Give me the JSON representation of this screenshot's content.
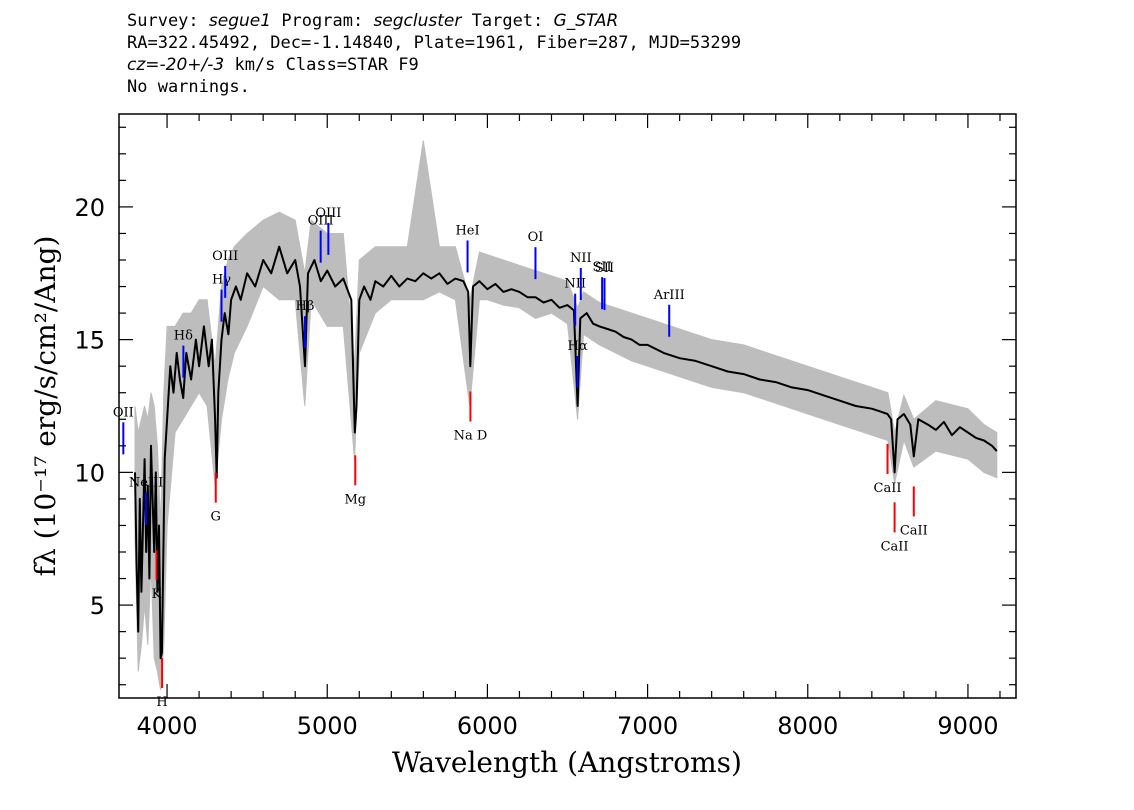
{
  "header": {
    "survey_label": "Survey:",
    "survey": "segue1",
    "program_label": "Program:",
    "program": "segcluster",
    "target_label": "Target:",
    "target": "G_STAR",
    "line2": "RA=322.45492, Dec=-1.14840, Plate=1961, Fiber=287, MJD=53299",
    "cz": "cz=",
    "cz_value": "-20+/-3",
    "cz_rest": " km/s Class=STAR F9",
    "line4": "No warnings."
  },
  "chart_data": {
    "type": "line",
    "xlabel": "Wavelength (Angstroms)",
    "ylabel": "fλ (10⁻¹⁷ erg/s/cm²/Ang)",
    "xlim": [
      3700,
      9300
    ],
    "ylim": [
      1.5,
      23.5
    ],
    "x_ticks": [
      4000,
      5000,
      6000,
      7000,
      8000,
      9000
    ],
    "y_ticks": [
      5,
      10,
      15,
      20
    ],
    "series": [
      {
        "role": "error-envelope",
        "color": "#bdbdbd",
        "x": [
          3800,
          3820,
          3840,
          3860,
          3880,
          3900,
          3920,
          3940,
          3960,
          3980,
          4000,
          4050,
          4100,
          4150,
          4200,
          4250,
          4300,
          4340,
          4380,
          4420,
          4500,
          4600,
          4700,
          4800,
          4860,
          4900,
          5000,
          5100,
          5170,
          5200,
          5300,
          5400,
          5500,
          5600,
          5700,
          5800,
          5890,
          5950,
          6000,
          6100,
          6200,
          6300,
          6400,
          6500,
          6563,
          6600,
          6700,
          6800,
          6900,
          7000,
          7200,
          7400,
          7600,
          7800,
          8000,
          8200,
          8400,
          8500,
          8542,
          8600,
          8662,
          8800,
          9000,
          9100,
          9180
        ],
        "low": [
          7.5,
          2.5,
          3.5,
          5.0,
          3.5,
          6.5,
          3.0,
          2.5,
          1.8,
          3.5,
          8.0,
          11.5,
          12.0,
          12.5,
          13.0,
          12.5,
          9.5,
          12.0,
          13.5,
          14.5,
          15.5,
          17.0,
          16.5,
          16.5,
          12.5,
          16.5,
          15.5,
          15.5,
          10.5,
          14.5,
          16.0,
          16.5,
          16.5,
          16.5,
          16.8,
          16.5,
          12.5,
          16.5,
          16.5,
          16.3,
          16.2,
          15.8,
          16.0,
          15.6,
          12.0,
          15.2,
          14.8,
          14.5,
          14.2,
          14.0,
          13.6,
          13.2,
          13.0,
          12.6,
          12.2,
          11.8,
          11.4,
          11.2,
          9.6,
          11.2,
          10.2,
          10.8,
          10.5,
          10.0,
          9.8
        ],
        "high": [
          12.5,
          11.5,
          12.0,
          12.5,
          12.0,
          13.0,
          12.5,
          11.0,
          8.0,
          13.0,
          15.5,
          15.5,
          16.0,
          16.0,
          16.5,
          16.5,
          14.0,
          17.0,
          18.0,
          18.5,
          19.0,
          19.5,
          19.8,
          19.5,
          17.5,
          19.5,
          19.0,
          19.0,
          14.0,
          18.0,
          18.5,
          18.5,
          18.5,
          22.5,
          18.5,
          18.5,
          16.5,
          18.3,
          18.2,
          18.0,
          17.8,
          17.6,
          17.4,
          17.2,
          16.2,
          16.8,
          16.4,
          16.2,
          16.0,
          15.8,
          15.4,
          15.0,
          14.8,
          14.4,
          14.0,
          13.6,
          13.2,
          13.0,
          11.5,
          12.9,
          12.0,
          12.7,
          12.4,
          11.8,
          11.5
        ]
      },
      {
        "role": "flux",
        "color": "#000000",
        "x": [
          3800,
          3810,
          3820,
          3830,
          3840,
          3850,
          3860,
          3870,
          3880,
          3890,
          3900,
          3910,
          3920,
          3930,
          3940,
          3950,
          3960,
          3968,
          3975,
          3985,
          4000,
          4020,
          4040,
          4060,
          4080,
          4101,
          4120,
          4150,
          4180,
          4200,
          4230,
          4260,
          4280,
          4300,
          4310,
          4320,
          4340,
          4360,
          4383,
          4400,
          4430,
          4460,
          4500,
          4550,
          4600,
          4650,
          4700,
          4750,
          4800,
          4830,
          4861,
          4880,
          4920,
          4960,
          5000,
          5050,
          5100,
          5150,
          5172,
          5183,
          5200,
          5230,
          5270,
          5300,
          5350,
          5400,
          5450,
          5500,
          5550,
          5600,
          5650,
          5700,
          5750,
          5800,
          5850,
          5880,
          5893,
          5910,
          5950,
          6000,
          6050,
          6100,
          6150,
          6200,
          6250,
          6300,
          6350,
          6400,
          6450,
          6500,
          6540,
          6563,
          6580,
          6620,
          6660,
          6700,
          6750,
          6800,
          6850,
          6900,
          6950,
          7000,
          7100,
          7200,
          7300,
          7400,
          7500,
          7600,
          7700,
          7800,
          7900,
          8000,
          8100,
          8200,
          8300,
          8400,
          8450,
          8498,
          8520,
          8542,
          8560,
          8600,
          8640,
          8662,
          8690,
          8750,
          8800,
          8850,
          8900,
          8950,
          9000,
          9050,
          9100,
          9150,
          9180
        ],
        "y": [
          10.0,
          6.5,
          4.0,
          9.0,
          5.5,
          8.0,
          10.5,
          7.0,
          9.5,
          6.0,
          11.0,
          9.0,
          7.0,
          10.0,
          5.5,
          8.0,
          3.0,
          3.2,
          6.0,
          10.5,
          12.0,
          14.0,
          13.0,
          14.5,
          13.5,
          12.8,
          14.5,
          13.5,
          15.0,
          14.0,
          15.5,
          14.0,
          15.0,
          12.0,
          9.8,
          13.0,
          15.0,
          16.0,
          15.2,
          16.5,
          17.0,
          16.5,
          17.5,
          17.0,
          18.0,
          17.5,
          18.5,
          17.5,
          18.0,
          17.0,
          14.0,
          17.5,
          18.0,
          17.2,
          17.6,
          17.0,
          17.3,
          16.5,
          11.5,
          12.5,
          16.5,
          17.0,
          16.5,
          17.2,
          17.0,
          17.4,
          17.0,
          17.3,
          17.2,
          17.5,
          17.3,
          17.5,
          17.1,
          17.3,
          17.2,
          16.8,
          14.0,
          17.0,
          17.2,
          16.9,
          17.1,
          16.8,
          16.9,
          16.8,
          16.6,
          16.6,
          16.4,
          16.5,
          16.2,
          16.3,
          16.1,
          12.5,
          15.8,
          16.0,
          15.6,
          15.5,
          15.4,
          15.3,
          15.1,
          15.0,
          14.8,
          14.8,
          14.5,
          14.3,
          14.2,
          14.0,
          13.8,
          13.7,
          13.5,
          13.4,
          13.2,
          13.1,
          12.9,
          12.7,
          12.5,
          12.4,
          12.3,
          12.2,
          12.0,
          10.0,
          12.0,
          12.2,
          11.8,
          10.6,
          12.0,
          11.8,
          11.6,
          11.9,
          11.4,
          11.7,
          11.5,
          11.3,
          11.2,
          11.0,
          10.8
        ]
      }
    ],
    "emission_lines": [
      {
        "label": "OII",
        "x": 3727
      },
      {
        "label": "NeIII",
        "x": 3869
      },
      {
        "label": "Hδ",
        "x": 4102
      },
      {
        "label": "Hγ",
        "x": 4340
      },
      {
        "label": "OIII",
        "x": 4363
      },
      {
        "label": "Hβ",
        "x": 4861
      },
      {
        "label": "OIII",
        "x": 4959
      },
      {
        "label": "OIII",
        "x": 5007
      },
      {
        "label": "HeI",
        "x": 5876
      },
      {
        "label": "OI",
        "x": 6300
      },
      {
        "label": "NII",
        "x": 6548
      },
      {
        "label": "Hα",
        "x": 6563
      },
      {
        "label": "NII",
        "x": 6583
      },
      {
        "label": "SII",
        "x": 6716
      },
      {
        "label": "SII",
        "x": 6731
      },
      {
        "label": "ArIII",
        "x": 7135
      }
    ],
    "absorption_lines": [
      {
        "label": "K",
        "x": 3934
      },
      {
        "label": "H",
        "x": 3969
      },
      {
        "label": "G",
        "x": 4304
      },
      {
        "label": "Mg",
        "x": 5175
      },
      {
        "label": "Na D",
        "x": 5894
      },
      {
        "label": "CaII",
        "x": 8498
      },
      {
        "label": "CaII",
        "x": 8542
      },
      {
        "label": "CaII",
        "x": 8662
      }
    ],
    "emission_color": "#0000ff",
    "absorption_color": "#ff0000"
  }
}
